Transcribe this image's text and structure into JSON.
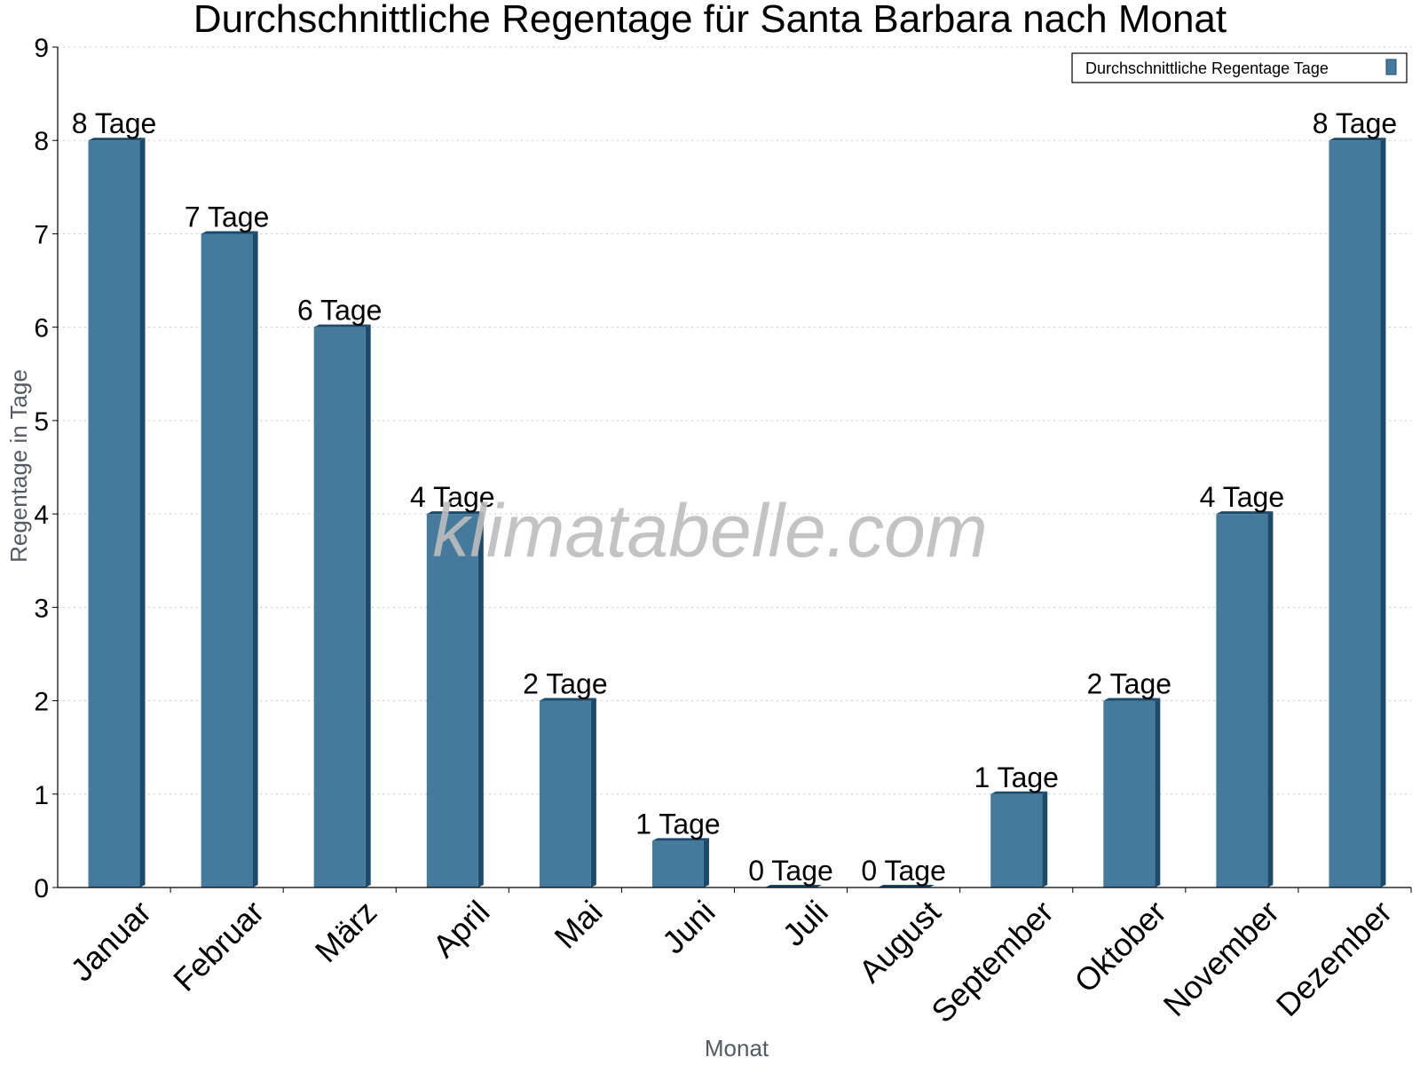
{
  "chart_data": {
    "type": "bar",
    "title": "Durchschnittliche Regentage für Santa Barbara nach Monat",
    "xlabel": "Monat",
    "ylabel": "Regentage in Tage",
    "categories": [
      "Januar",
      "Februar",
      "März",
      "April",
      "Mai",
      "Juni",
      "Juli",
      "August",
      "September",
      "Oktober",
      "November",
      "Dezember"
    ],
    "series": [
      {
        "name": "Durchschnittliche Regentage Tage",
        "values": [
          8,
          7,
          6,
          4,
          2,
          0.5,
          0,
          0,
          1,
          2,
          4,
          8
        ],
        "labels": [
          "8 Tage",
          "7 Tage",
          "6 Tage",
          "4 Tage",
          "2 Tage",
          "1 Tage",
          "0 Tage",
          "0 Tage",
          "1 Tage",
          "2 Tage",
          "4 Tage",
          "8 Tage"
        ]
      }
    ],
    "ylim": [
      0,
      9
    ],
    "yticks": [
      "0",
      "1",
      "2",
      "3",
      "4",
      "5",
      "6",
      "7",
      "8",
      "9"
    ],
    "grid": true,
    "legend_position": "top-right",
    "bar_color": "#457a9c",
    "bar_side_color": "#1b4a6b",
    "watermark": "klimatabelle.com"
  }
}
